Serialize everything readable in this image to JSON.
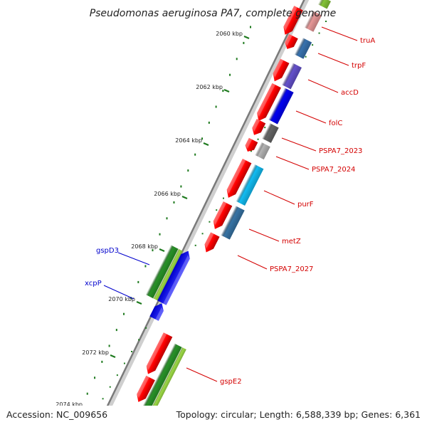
{
  "title": "Pseudomonas aeruginosa PA7, complete genome",
  "footer": {
    "accession": "Accession: NC_009656",
    "summary": "Topology: circular; Length: 6,588,339 bp; Genes: 6,361"
  },
  "colors": {
    "forward_label": "#d40000",
    "reverse_label": "#0000cc",
    "tick": "#1e7a1e",
    "backbone": "#808080"
  },
  "ticks": [
    "2060 kbp",
    "2062 kbp",
    "2064 kbp",
    "2066 kbp",
    "2068 kbp",
    "2070 kbp",
    "2072 kbp",
    "2074 kbp"
  ],
  "gene_labels": [
    {
      "text": "truA",
      "strand": "forward"
    },
    {
      "text": "trpF",
      "strand": "forward"
    },
    {
      "text": "accD",
      "strand": "forward"
    },
    {
      "text": "folC",
      "strand": "forward"
    },
    {
      "text": "PSPA7_2023",
      "strand": "forward"
    },
    {
      "text": "PSPA7_2024",
      "strand": "forward"
    },
    {
      "text": "purF",
      "strand": "forward"
    },
    {
      "text": "metZ",
      "strand": "forward"
    },
    {
      "text": "PSPA7_2027",
      "strand": "forward"
    },
    {
      "text": "gspE2",
      "strand": "forward"
    },
    {
      "text": "gspD3",
      "strand": "reverse"
    },
    {
      "text": "xcpP",
      "strand": "reverse"
    }
  ]
}
